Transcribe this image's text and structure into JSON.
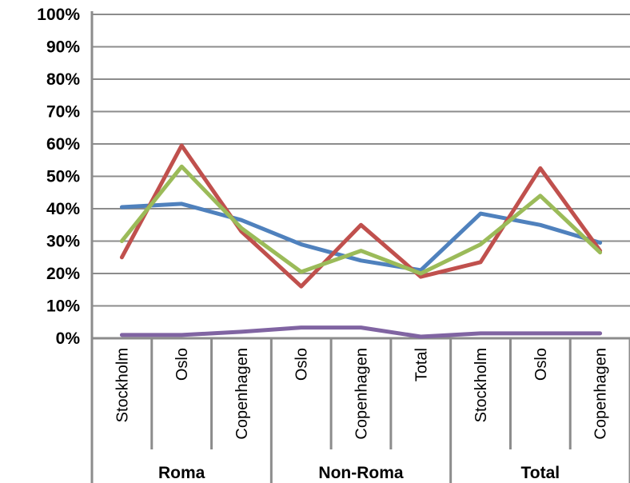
{
  "chart_data": {
    "type": "line",
    "ylim": [
      0,
      100
    ],
    "y_ticks": [
      "0%",
      "10%",
      "20%",
      "30%",
      "40%",
      "50%",
      "60%",
      "70%",
      "80%",
      "90%",
      "100%"
    ],
    "grid": true,
    "categories": [
      "Stockholm",
      "Oslo",
      "Copenhagen",
      "Oslo",
      "Copenhagen",
      "Total",
      "Stockholm",
      "Oslo",
      "Copenhagen"
    ],
    "groups": [
      {
        "label": "Roma",
        "span": 3
      },
      {
        "label": "Non-Roma",
        "span": 3
      },
      {
        "label": "Total",
        "span": 3
      }
    ],
    "series": [
      {
        "color": "#4f81bd",
        "values": [
          40.5,
          41.5,
          36.5,
          29,
          24,
          21,
          38.5,
          35,
          29.5
        ]
      },
      {
        "color": "#c0504d",
        "values": [
          25,
          59.5,
          33,
          16,
          35,
          19,
          23.5,
          52.5,
          27
        ]
      },
      {
        "color": "#9bbb59",
        "values": [
          30,
          53,
          34,
          20.5,
          27,
          20,
          29,
          44,
          26.5
        ]
      },
      {
        "color": "#8064a2",
        "values": [
          1,
          1,
          2,
          3.3,
          3.3,
          0.5,
          1.5,
          1.5,
          1.5
        ]
      }
    ]
  }
}
